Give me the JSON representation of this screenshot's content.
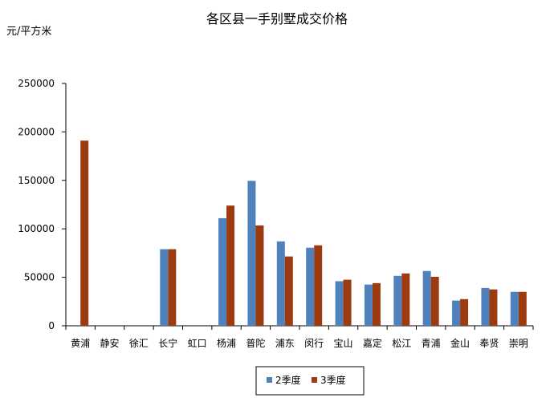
{
  "chart_data": {
    "type": "bar",
    "title": "各区县一手别墅成交价格",
    "ylabel": "元/平方米",
    "xlabel": "",
    "ylim": [
      0,
      250000
    ],
    "yticks": [
      0,
      50000,
      100000,
      150000,
      200000,
      250000
    ],
    "grid": false,
    "legend_position": "bottom",
    "categories": [
      "黄浦",
      "静安",
      "徐汇",
      "长宁",
      "虹口",
      "杨浦",
      "普陀",
      "浦东",
      "闵行",
      "宝山",
      "嘉定",
      "松江",
      "青浦",
      "金山",
      "奉贤",
      "崇明"
    ],
    "series": [
      {
        "name": "2季度",
        "color": "#4f81bd",
        "values": [
          0,
          0,
          0,
          79000,
          0,
          111000,
          149500,
          87000,
          80500,
          46000,
          42500,
          51500,
          56500,
          26000,
          39000,
          35000
        ]
      },
      {
        "name": "3季度",
        "color": "#9c3b10",
        "values": [
          191000,
          0,
          0,
          79000,
          0,
          124000,
          103500,
          71500,
          83000,
          47500,
          44000,
          54000,
          50500,
          27500,
          37500,
          35000
        ]
      }
    ]
  }
}
